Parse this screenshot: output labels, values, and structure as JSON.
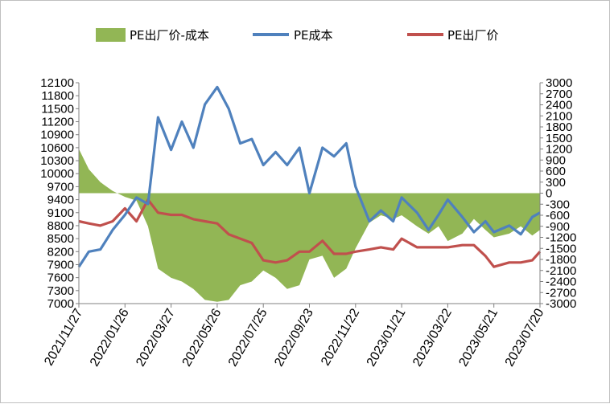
{
  "chart_data": {
    "type": "line",
    "title": "",
    "legend_position": "top",
    "grid": false,
    "x_tick_labels": [
      "2021/11/27",
      "2022/01/26",
      "2022/03/27",
      "2022/05/26",
      "2022/07/25",
      "2022/09/23",
      "2022/11/22",
      "2023/01/21",
      "2023/03/22",
      "2023/05/21",
      "2023/07/20"
    ],
    "y_left": {
      "min": 7000,
      "max": 12100,
      "step": 300,
      "ticks": [
        "12100",
        "11800",
        "11500",
        "11200",
        "10900",
        "10600",
        "10300",
        "10000",
        "9700",
        "9400",
        "9100",
        "8800",
        "8500",
        "8200",
        "7900",
        "7600",
        "7300",
        "7000"
      ]
    },
    "y_right": {
      "min": -3000,
      "max": 3000,
      "step": 300,
      "ticks": [
        "3000",
        "2700",
        "2400",
        "2100",
        "1800",
        "1500",
        "1200",
        "900",
        "600",
        "300",
        "0",
        "-300",
        "-600",
        "-900",
        "-1200",
        "-1500",
        "-1800",
        "-2100",
        "-2400",
        "-2700",
        "-3000"
      ]
    },
    "series": [
      {
        "name": "PE出厂价-成本",
        "type": "area",
        "axis": "right",
        "color": "#92b655",
        "x": [
          "2021/11/27",
          "2021/12/10",
          "2021/12/25",
          "2022/01/10",
          "2022/01/26",
          "2022/02/10",
          "2022/02/25",
          "2022/03/10",
          "2022/03/27",
          "2022/04/10",
          "2022/04/25",
          "2022/05/10",
          "2022/05/26",
          "2022/06/10",
          "2022/06/25",
          "2022/07/10",
          "2022/07/25",
          "2022/08/10",
          "2022/08/25",
          "2022/09/10",
          "2022/09/23",
          "2022/10/10",
          "2022/10/25",
          "2022/11/10",
          "2022/11/22",
          "2022/12/10",
          "2022/12/25",
          "2023/01/10",
          "2023/01/21",
          "2023/02/10",
          "2023/02/25",
          "2023/03/10",
          "2023/03/22",
          "2023/04/10",
          "2023/04/25",
          "2023/05/10",
          "2023/05/21",
          "2023/06/10",
          "2023/06/25",
          "2023/07/10",
          "2023/07/20"
        ],
        "values": [
          1200,
          650,
          300,
          60,
          -100,
          -200,
          -900,
          -2050,
          -2300,
          -2400,
          -2600,
          -2900,
          -2950,
          -2900,
          -2500,
          -2400,
          -2100,
          -2300,
          -2600,
          -2500,
          -1800,
          -1700,
          -2300,
          -2050,
          -1500,
          -800,
          -600,
          -700,
          -600,
          -900,
          -1100,
          -900,
          -1300,
          -1100,
          -700,
          -1000,
          -1200,
          -1100,
          -900,
          -1150,
          -1000
        ]
      },
      {
        "name": "PE成本",
        "type": "line",
        "axis": "left",
        "color": "#4f81bd",
        "x": [
          "2021/11/27",
          "2021/12/10",
          "2021/12/25",
          "2022/01/10",
          "2022/01/26",
          "2022/02/10",
          "2022/02/25",
          "2022/03/10",
          "2022/03/27",
          "2022/04/10",
          "2022/04/25",
          "2022/05/10",
          "2022/05/26",
          "2022/06/10",
          "2022/06/25",
          "2022/07/10",
          "2022/07/25",
          "2022/08/10",
          "2022/08/25",
          "2022/09/10",
          "2022/09/23",
          "2022/10/10",
          "2022/10/25",
          "2022/11/10",
          "2022/11/22",
          "2022/12/10",
          "2022/12/25",
          "2023/01/10",
          "2023/01/21",
          "2023/02/10",
          "2023/02/25",
          "2023/03/10",
          "2023/03/22",
          "2023/04/10",
          "2023/04/25",
          "2023/05/10",
          "2023/05/21",
          "2023/06/10",
          "2023/06/25",
          "2023/07/10",
          "2023/07/20"
        ],
        "values": [
          7850,
          8200,
          8250,
          8700,
          9050,
          9450,
          9300,
          11300,
          10550,
          11200,
          10600,
          11600,
          12000,
          11500,
          10700,
          10800,
          10200,
          10500,
          10200,
          10600,
          9550,
          10600,
          10400,
          10700,
          9700,
          8900,
          9150,
          8900,
          9450,
          9100,
          8700,
          9050,
          9400,
          9000,
          8650,
          8900,
          8650,
          8800,
          8600,
          9000,
          9100
        ]
      },
      {
        "name": "PE出厂价",
        "type": "line",
        "axis": "left",
        "color": "#c0504d",
        "x": [
          "2021/11/27",
          "2021/12/10",
          "2021/12/25",
          "2022/01/10",
          "2022/01/26",
          "2022/02/10",
          "2022/02/25",
          "2022/03/10",
          "2022/03/27",
          "2022/04/10",
          "2022/04/25",
          "2022/05/10",
          "2022/05/26",
          "2022/06/10",
          "2022/06/25",
          "2022/07/10",
          "2022/07/25",
          "2022/08/10",
          "2022/08/25",
          "2022/09/10",
          "2022/09/23",
          "2022/10/10",
          "2022/10/25",
          "2022/11/10",
          "2022/11/22",
          "2022/12/10",
          "2022/12/25",
          "2023/01/10",
          "2023/01/21",
          "2023/02/10",
          "2023/02/25",
          "2023/03/10",
          "2023/03/22",
          "2023/04/10",
          "2023/04/25",
          "2023/05/10",
          "2023/05/21",
          "2023/06/10",
          "2023/06/25",
          "2023/07/10",
          "2023/07/20"
        ],
        "values": [
          8900,
          8850,
          8800,
          8900,
          9200,
          8900,
          9400,
          9100,
          9050,
          9050,
          8950,
          8900,
          8850,
          8600,
          8500,
          8400,
          8000,
          7950,
          8000,
          8200,
          8200,
          8450,
          8150,
          8150,
          8200,
          8250,
          8300,
          8250,
          8500,
          8300,
          8300,
          8300,
          8300,
          8350,
          8350,
          8100,
          7850,
          7950,
          7950,
          8000,
          8200
        ]
      }
    ]
  }
}
